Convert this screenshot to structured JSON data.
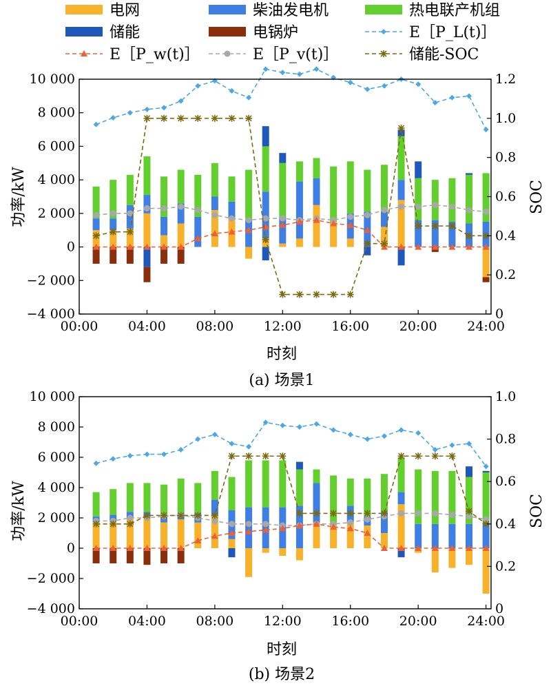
{
  "legend": [
    {
      "key": "grid",
      "label": "电网",
      "type": "bar",
      "color": "#F7B12A"
    },
    {
      "key": "diesel",
      "label": "柴油发电机",
      "type": "bar",
      "color": "#3F7FE3"
    },
    {
      "key": "chp",
      "label": "热电联产机组",
      "type": "bar",
      "color": "#63CF2F"
    },
    {
      "key": "storage",
      "label": "储能",
      "type": "bar",
      "color": "#1F58B8"
    },
    {
      "key": "boiler",
      "label": "电锅炉",
      "type": "bar",
      "color": "#8A2E0C"
    },
    {
      "key": "pl",
      "label": "E［P_L(t)］",
      "type": "line",
      "color": "#4DA6E6",
      "marker": "diamond"
    },
    {
      "key": "pw",
      "label": "E［P_w(t)］",
      "type": "line",
      "color": "#E8623A",
      "marker": "triangle"
    },
    {
      "key": "pv",
      "label": "E［P_v(t)］",
      "type": "line",
      "color": "#A8A8A8",
      "marker": "circle"
    },
    {
      "key": "soc",
      "label": "储能-SOC",
      "type": "line",
      "color": "#7A6A10",
      "marker": "star"
    }
  ],
  "chart_data": [
    {
      "type": "bar",
      "caption": "(a) 场景1",
      "xlabel": "时刻",
      "ylabel": "功率/kW",
      "y2label": "SOC",
      "xlim": [
        0,
        24.3
      ],
      "x_ticks": [
        "00:00",
        "04:00",
        "08:00",
        "12:00",
        "16:00",
        "20:00",
        "24:00"
      ],
      "x_tick_values": [
        0,
        4,
        8,
        12,
        16,
        20,
        24
      ],
      "ylim": [
        -4000,
        10000
      ],
      "y_ticks": [
        "−4 000",
        "−2 000",
        "0",
        "2 000",
        "4 000",
        "6 000",
        "8 000",
        "10 000"
      ],
      "y_tick_values": [
        -4000,
        -2000,
        0,
        2000,
        4000,
        6000,
        8000,
        10000
      ],
      "y2lim": [
        0,
        1.2
      ],
      "y2_ticks": [
        "0",
        "0.2",
        "0.4",
        "0.6",
        "0.8",
        "1.0",
        "1.2"
      ],
      "y2_tick_values": [
        0,
        0.2,
        0.4,
        0.6,
        0.8,
        1.0,
        1.2
      ],
      "hours": [
        1,
        2,
        3,
        4,
        5,
        6,
        7,
        8,
        9,
        10,
        11,
        12,
        13,
        14,
        15,
        16,
        17,
        18,
        19,
        20,
        21,
        22,
        23,
        24
      ],
      "series": {
        "grid": [
          1000,
          1000,
          1100,
          2000,
          700,
          1400,
          0,
          2200,
          1700,
          -700,
          500,
          200,
          500,
          2500,
          1500,
          500,
          0,
          1200,
          2800,
          0,
          0,
          0,
          0,
          -1800
        ],
        "diesel": [
          700,
          700,
          1400,
          1100,
          1100,
          1200,
          1800,
          800,
          1000,
          1600,
          2800,
          1600,
          3400,
          1600,
          0,
          1500,
          2100,
          900,
          1200,
          1600,
          1600,
          1500,
          1400,
          1500
        ],
        "chp": [
          1900,
          2300,
          1800,
          2300,
          2400,
          2000,
          2500,
          2000,
          1500,
          3000,
          2700,
          3200,
          1200,
          1200,
          3300,
          3100,
          2500,
          2800,
          2600,
          2500,
          2400,
          2600,
          2900,
          2900
        ],
        "storage": [
          0,
          0,
          0,
          -1200,
          0,
          0,
          0,
          0,
          0,
          0,
          -800,
          0,
          0,
          0,
          0,
          0,
          -500,
          0,
          -1100,
          0,
          0,
          0,
          0,
          0
        ],
        "storage_top": [
          0,
          0,
          0,
          0,
          0,
          0,
          0,
          0,
          0,
          0,
          1200,
          600,
          0,
          0,
          0,
          0,
          0,
          0,
          400,
          1000,
          0,
          0,
          100,
          0
        ],
        "boiler": [
          -1000,
          -1000,
          -1000,
          -900,
          -1000,
          -1000,
          0,
          0,
          0,
          0,
          0,
          0,
          0,
          0,
          0,
          0,
          0,
          0,
          0,
          0,
          -300,
          0,
          0,
          -300
        ],
        "pl": [
          7300,
          7700,
          8000,
          8200,
          8300,
          8700,
          9600,
          9900,
          9300,
          8900,
          10600,
          10400,
          10300,
          10600,
          10100,
          9800,
          9400,
          9600,
          10000,
          9700,
          8600,
          8900,
          9000,
          7000
        ],
        "pw": [
          0,
          0,
          0,
          0,
          0,
          0,
          500,
          800,
          900,
          1000,
          1200,
          1300,
          1500,
          1600,
          1400,
          1300,
          1000,
          0,
          0,
          0,
          0,
          0,
          0,
          0
        ],
        "pv": [
          1900,
          2000,
          2000,
          2300,
          2300,
          2400,
          2200,
          1900,
          1700,
          1600,
          1700,
          1700,
          1600,
          1700,
          1600,
          1800,
          1900,
          2200,
          2400,
          2400,
          2500,
          2400,
          2200,
          2100
        ],
        "soc": [
          0.4,
          0.42,
          0.42,
          1.0,
          1.0,
          1.0,
          1.0,
          1.0,
          1.0,
          1.0,
          0.38,
          0.1,
          0.1,
          0.1,
          0.1,
          0.1,
          0.36,
          0.36,
          0.95,
          0.45,
          0.45,
          0.45,
          0.4,
          0.4
        ]
      }
    },
    {
      "type": "bar",
      "caption": "(b) 场景2",
      "xlabel": "时刻",
      "ylabel": "功率/kW",
      "y2label": "SOC",
      "xlim": [
        0,
        24.3
      ],
      "x_ticks": [
        "00:00",
        "04:00",
        "08:00",
        "12:00",
        "16:00",
        "20:00",
        "24:00"
      ],
      "x_tick_values": [
        0,
        4,
        8,
        12,
        16,
        20,
        24
      ],
      "ylim": [
        -4000,
        10000
      ],
      "y_ticks": [
        "−4 000",
        "−2 000",
        "0",
        "2 000",
        "4 000",
        "6 000",
        "8 000",
        "10 000"
      ],
      "y_tick_values": [
        -4000,
        -2000,
        0,
        2000,
        4000,
        6000,
        8000,
        10000
      ],
      "y2lim": [
        0,
        1.0
      ],
      "y2_ticks": [
        "0",
        "0.2",
        "0.4",
        "0.6",
        "0.8",
        "1.0"
      ],
      "y2_tick_values": [
        0,
        0.2,
        0.4,
        0.6,
        0.8,
        1.0
      ],
      "hours": [
        1,
        2,
        3,
        4,
        5,
        6,
        7,
        8,
        9,
        10,
        11,
        12,
        13,
        14,
        15,
        16,
        17,
        18,
        19,
        20,
        21,
        22,
        23,
        24
      ],
      "series": {
        "grid": [
          1700,
          1800,
          2000,
          2000,
          1700,
          1900,
          1700,
          2200,
          600,
          -1900,
          -300,
          -500,
          -800,
          1700,
          1700,
          1700,
          1500,
          1000,
          2900,
          -300,
          -1600,
          -1300,
          -1100,
          -3000
        ],
        "diesel": [
          400,
          400,
          400,
          400,
          400,
          400,
          600,
          1000,
          1900,
          2700,
          2700,
          2700,
          2800,
          2600,
          0,
          1100,
          600,
          1400,
          800,
          1600,
          1600,
          1600,
          1600,
          1700
        ],
        "chp": [
          1600,
          1700,
          1900,
          1900,
          2100,
          2300,
          2000,
          1900,
          2200,
          3100,
          3100,
          3100,
          2400,
          900,
          3100,
          1800,
          2500,
          2500,
          2300,
          3600,
          3500,
          3500,
          3100,
          3300
        ],
        "storage": [
          0,
          0,
          0,
          0,
          0,
          0,
          0,
          0,
          -600,
          0,
          0,
          0,
          0,
          0,
          0,
          0,
          0,
          0,
          -600,
          0,
          0,
          0,
          0,
          0
        ],
        "storage_top": [
          0,
          0,
          0,
          0,
          0,
          0,
          0,
          0,
          0,
          0,
          0,
          0,
          500,
          0,
          0,
          0,
          0,
          0,
          0,
          0,
          0,
          0,
          700,
          100
        ],
        "boiler": [
          -1000,
          -1000,
          -1000,
          -1100,
          -1000,
          -1000,
          0,
          0,
          0,
          0,
          0,
          0,
          0,
          0,
          0,
          0,
          0,
          0,
          0,
          0,
          0,
          0,
          0,
          0
        ],
        "pl": [
          5600,
          5900,
          6100,
          6200,
          6200,
          6500,
          7200,
          7500,
          6900,
          6700,
          8300,
          8100,
          8000,
          8200,
          7800,
          7500,
          7200,
          7400,
          7800,
          7600,
          6500,
          6800,
          6900,
          5400
        ],
        "pw": [
          0,
          0,
          0,
          0,
          0,
          0,
          500,
          800,
          1000,
          1100,
          1200,
          1300,
          1500,
          1600,
          1400,
          1300,
          1000,
          0,
          0,
          0,
          0,
          0,
          0,
          0
        ],
        "pv": [
          1800,
          1800,
          2000,
          2000,
          2100,
          2200,
          2000,
          1800,
          1600,
          1600,
          1600,
          1500,
          1500,
          1600,
          1600,
          1700,
          1900,
          2100,
          2300,
          2300,
          2300,
          2200,
          2100,
          1900
        ],
        "soc": [
          0.4,
          0.4,
          0.4,
          0.44,
          0.44,
          0.44,
          0.44,
          0.44,
          0.72,
          0.72,
          0.72,
          0.72,
          0.45,
          0.45,
          0.45,
          0.45,
          0.45,
          0.45,
          0.72,
          0.72,
          0.72,
          0.72,
          0.46,
          0.4
        ]
      }
    }
  ]
}
